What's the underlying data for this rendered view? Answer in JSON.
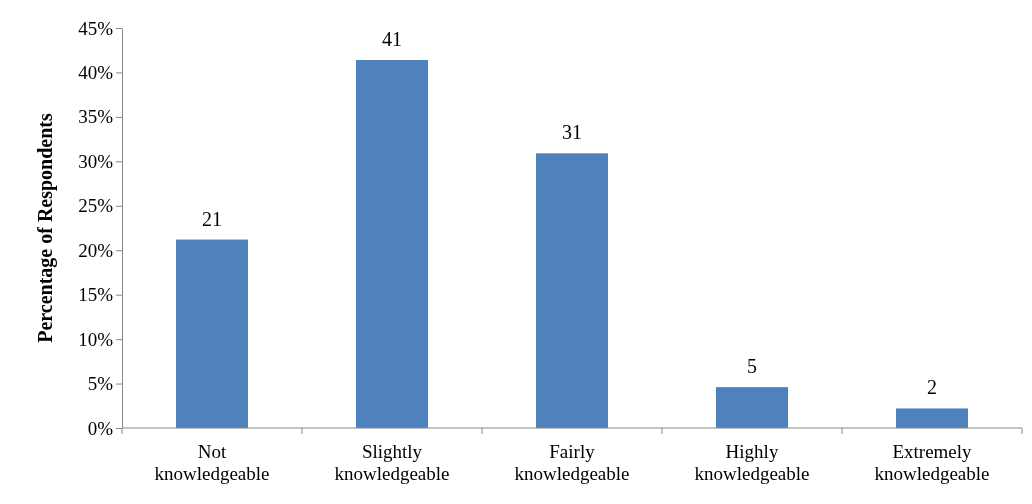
{
  "chart_data": {
    "type": "bar",
    "ylabel": "Percentage of Respondents",
    "categories": [
      "Not knowledgeable",
      "Slightly knowledgeable",
      "Fairly knowledgeable",
      "Highly knowledgeable",
      "Extremely knowledgeable"
    ],
    "values": [
      21.2,
      41.4,
      30.9,
      4.6,
      2.2
    ],
    "value_labels": [
      "21",
      "41",
      "31",
      "5",
      "2"
    ],
    "color": "#4f81bd",
    "ylim": [
      0,
      45
    ],
    "yticks": [
      {
        "value": 0,
        "label": "0%"
      },
      {
        "value": 5,
        "label": "5%"
      },
      {
        "value": 10,
        "label": "10%"
      },
      {
        "value": 15,
        "label": "15%"
      },
      {
        "value": 20,
        "label": "20%"
      },
      {
        "value": 25,
        "label": "25%"
      },
      {
        "value": 30,
        "label": "30%"
      },
      {
        "value": 35,
        "label": "35%"
      },
      {
        "value": 40,
        "label": "40%"
      },
      {
        "value": 45,
        "label": "45%"
      }
    ],
    "grid": false
  }
}
